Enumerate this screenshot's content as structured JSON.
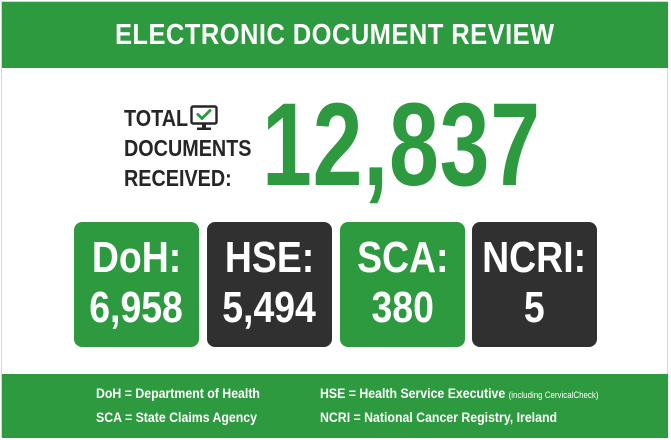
{
  "header": {
    "title": "ELECTRONIC DOCUMENT REVIEW"
  },
  "total": {
    "label_lines": [
      "TOTAL",
      "DOCUMENTS",
      "RECEIVED:"
    ],
    "value": "12,837",
    "icon": "computer-monitor-checkmark-icon"
  },
  "tiles": [
    {
      "label": "DoH:",
      "value": "6,958"
    },
    {
      "label": "HSE:",
      "value": "5,494"
    },
    {
      "label": "SCA:",
      "value": "380"
    },
    {
      "label": "NCRI:",
      "value": "5"
    }
  ],
  "legend": [
    {
      "text": "DoH = Department of Health",
      "note": ""
    },
    {
      "text": "HSE = Health Service Executive",
      "note": "(including CervicalCheck)"
    },
    {
      "text": "SCA = State Claims Agency",
      "note": ""
    },
    {
      "text": "NCRI = National Cancer Registry, Ireland",
      "note": ""
    }
  ],
  "colors": {
    "green": "#2d9a3f",
    "dark": "#303030",
    "text": "#262626"
  }
}
